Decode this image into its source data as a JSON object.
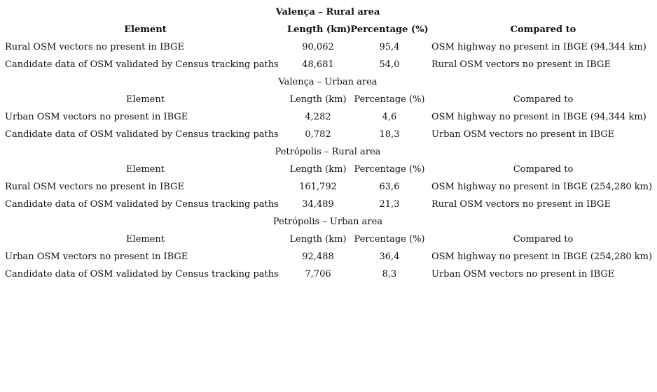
{
  "table": {
    "sections": [
      {
        "title": "Valença – Rural area",
        "bold": true,
        "headers": {
          "element": "Element",
          "length": "Length (km)",
          "percentage": "Percentage (%)",
          "compared_to": "Compared to"
        },
        "rows": [
          {
            "element": "Rural OSM vectors no present in IBGE",
            "length": "90,062",
            "percentage": "95,4",
            "compared_to": "OSM highway no present in IBGE (94,344 km)"
          },
          {
            "element": "Candidate data of OSM validated by Census tracking paths",
            "length": "48,681",
            "percentage": "54,0",
            "compared_to": "Rural OSM vectors no present in IBGE"
          }
        ]
      },
      {
        "title": "Valença – Urban area",
        "bold": false,
        "headers": {
          "element": "Element",
          "length": "Length (km)",
          "percentage": "Percentage (%)",
          "compared_to": "Compared to"
        },
        "rows": [
          {
            "element": "Urban OSM vectors no present in IBGE",
            "length": "4,282",
            "percentage": "4,6",
            "compared_to": "OSM highway no present in IBGE (94,344 km)"
          },
          {
            "element": "Candidate data of OSM validated by Census tracking paths",
            "length": "0,782",
            "percentage": "18,3",
            "compared_to": "Urban OSM vectors no present in IBGE"
          }
        ]
      },
      {
        "title": "Petrópolis – Rural area",
        "bold": false,
        "headers": {
          "element": "Element",
          "length": "Length (km)",
          "percentage": "Percentage (%)",
          "compared_to": "Compared to"
        },
        "rows": [
          {
            "element": "Rural OSM vectors no present in IBGE",
            "length": "161,792",
            "percentage": "63,6",
            "compared_to": "OSM highway no present in IBGE (254,280 km)"
          },
          {
            "element": "Candidate data of OSM validated by Census tracking paths",
            "length": "34,489",
            "percentage": "21,3",
            "compared_to": "Rural OSM vectors no present in IBGE"
          }
        ]
      },
      {
        "title": "Petrópolis – Urban area",
        "bold": false,
        "headers": {
          "element": "Element",
          "length": "Length (km)",
          "percentage": "Percentage (%)",
          "compared_to": "Compared to"
        },
        "rows": [
          {
            "element": "Urban OSM vectors no present in IBGE",
            "length": "92,488",
            "percentage": "36,4",
            "compared_to": "OSM highway no present in IBGE (254,280 km)"
          },
          {
            "element": "Candidate data of OSM validated by Census tracking paths",
            "length": "7,706",
            "percentage": "8,3",
            "compared_to": "Urban OSM vectors no present in IBGE"
          }
        ]
      }
    ]
  }
}
